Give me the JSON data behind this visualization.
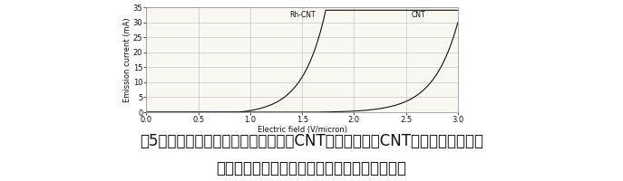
{
  "title_line1": "图5：作为电场函数的发射电流施加于CNT发射器，而且CNT发射器覆盖了铑。",
  "title_line2": "铑可以降低功函，允许在较低的提取电场下发射",
  "xlabel": "Electric field (V/micron)",
  "ylabel": "Emission current (mA)",
  "xlim": [
    0,
    3
  ],
  "ylim": [
    0,
    35
  ],
  "xticks": [
    0,
    0.5,
    1,
    1.5,
    2,
    2.5,
    3
  ],
  "yticks": [
    0,
    5,
    10,
    15,
    20,
    25,
    30,
    35
  ],
  "label_cnt": "CNT",
  "label_rh_cnt": "Rh-CNT",
  "bg_color": "#ffffff",
  "plot_bg_color": "#f8f8f0",
  "grid_color": "#bbbbbb",
  "curve_color": "#111111",
  "font_color": "#111111",
  "title_fontsize": 12,
  "axis_fontsize": 6,
  "tick_fontsize": 6
}
